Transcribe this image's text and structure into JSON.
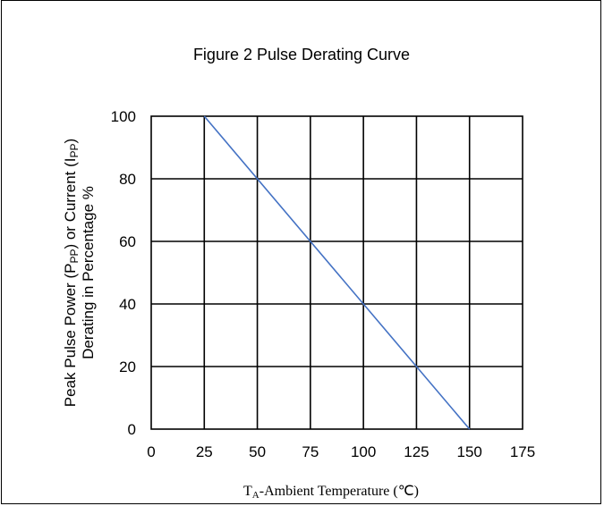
{
  "chart_data": {
    "type": "line",
    "title": "Figure 2 Pulse Derating Curve",
    "xlabel": {
      "prefix": "T",
      "sub": "A",
      "rest": "-Ambient Temperature (℃)"
    },
    "ylabel": {
      "line1": [
        {
          "t": "Peak Pulse Power (P",
          "sub": false
        },
        {
          "t": "PP",
          "sub": true
        },
        {
          "t": ") or Current (I",
          "sub": false
        },
        {
          "t": "PP",
          "sub": true
        },
        {
          "t": ")",
          "sub": false
        }
      ],
      "line2": "Derating in Percentage %"
    },
    "xlim": [
      0,
      175
    ],
    "ylim": [
      0,
      100
    ],
    "xticks": [
      "0",
      "25",
      "50",
      "75",
      "100",
      "125",
      "150",
      "175"
    ],
    "yticks": [
      "0",
      "20",
      "40",
      "60",
      "80",
      "100"
    ],
    "grid": true,
    "series": [
      {
        "x": [
          25,
          150
        ],
        "y": [
          100,
          0
        ],
        "color": "#4472c4"
      }
    ]
  }
}
